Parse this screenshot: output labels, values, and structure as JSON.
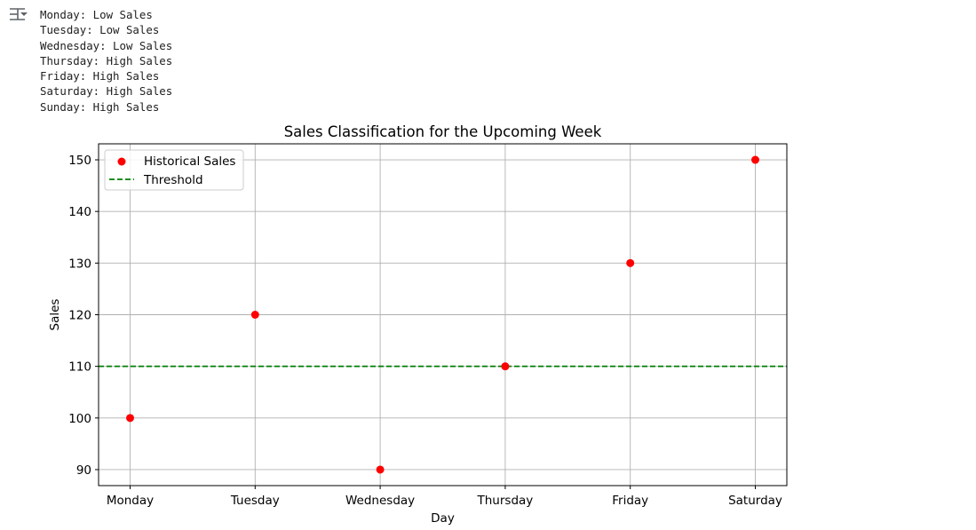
{
  "output_lines": [
    "Monday: Low Sales",
    "Tuesday: Low Sales",
    "Wednesday: Low Sales",
    "Thursday: High Sales",
    "Friday: High Sales",
    "Saturday: High Sales",
    "Sunday: High Sales"
  ],
  "chart_data": {
    "type": "scatter",
    "title": "Sales Classification for the Upcoming Week",
    "xlabel": "Day",
    "ylabel": "Sales",
    "categories": [
      "Monday",
      "Tuesday",
      "Wednesday",
      "Thursday",
      "Friday",
      "Saturday"
    ],
    "series": [
      {
        "name": "Historical Sales",
        "values": [
          100,
          120,
          90,
          110,
          130,
          150
        ],
        "color": "#ff0000"
      }
    ],
    "threshold": {
      "name": "Threshold",
      "value": 110,
      "color": "#008000",
      "style": "dashed"
    },
    "ylim": [
      86.9,
      153.1
    ],
    "yticks": [
      90,
      100,
      110,
      120,
      130,
      140,
      150
    ],
    "grid": true,
    "legend_position": "upper-left"
  }
}
